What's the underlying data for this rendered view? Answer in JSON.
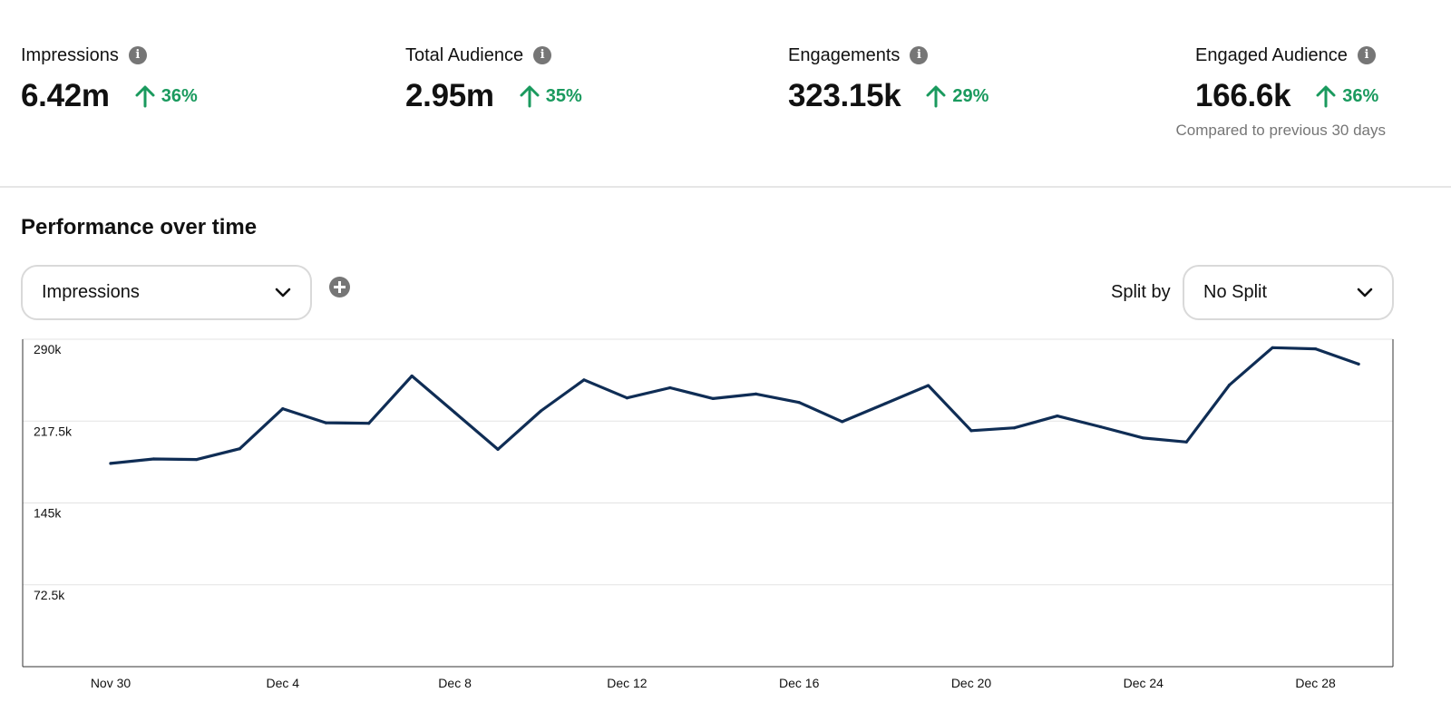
{
  "metrics": [
    {
      "label": "Impressions",
      "value": "6.42m",
      "change": "36%"
    },
    {
      "label": "Total Audience",
      "value": "2.95m",
      "change": "35%"
    },
    {
      "label": "Engagements",
      "value": "323.15k",
      "change": "29%"
    },
    {
      "label": "Engaged Audience",
      "value": "166.6k",
      "change": "36%"
    }
  ],
  "info_icon": "info-icon",
  "change_icon": "arrow-up-icon",
  "compare_note": "Compared to previous 30 days",
  "section_title": "Performance over time",
  "metric_select": {
    "value": "Impressions"
  },
  "add_icon": "plus-circle-icon",
  "split": {
    "label": "Split by",
    "value": "No Split"
  },
  "colors": {
    "line": "#0f2d55",
    "positive": "#1a9a5e",
    "icon": "#767676"
  },
  "chart_data": {
    "type": "line",
    "title": "",
    "xlabel": "",
    "ylabel": "",
    "ylim": [
      0,
      290000
    ],
    "y_ticks": [
      {
        "value": 290000,
        "label": "290k"
      },
      {
        "value": 217500,
        "label": "217.5k"
      },
      {
        "value": 145000,
        "label": "145k"
      },
      {
        "value": 72500,
        "label": "72.5k"
      }
    ],
    "x_tick_labels": [
      "Nov 30",
      "Dec 4",
      "Dec 8",
      "Dec 12",
      "Dec 16",
      "Dec 20",
      "Dec 24",
      "Dec 28"
    ],
    "grid": true,
    "x": [
      "Nov 30",
      "Dec 1",
      "Dec 2",
      "Dec 3",
      "Dec 4",
      "Dec 5",
      "Dec 6",
      "Dec 7",
      "Dec 8",
      "Dec 9",
      "Dec 10",
      "Dec 11",
      "Dec 12",
      "Dec 13",
      "Dec 14",
      "Dec 15",
      "Dec 16",
      "Dec 17",
      "Dec 18",
      "Dec 19",
      "Dec 20",
      "Dec 21",
      "Dec 22",
      "Dec 23",
      "Dec 24",
      "Dec 25",
      "Dec 26",
      "Dec 27",
      "Dec 28",
      "Dec 29"
    ],
    "series": [
      {
        "values": [
          180000,
          184000,
          183500,
          193000,
          228500,
          216000,
          215500,
          257500,
          225000,
          192500,
          226500,
          254000,
          238000,
          247000,
          237500,
          241500,
          234000,
          217000,
          233000,
          249000,
          209000,
          211500,
          222000,
          212500,
          202500,
          199000,
          249500,
          282500,
          281500,
          268000
        ]
      }
    ]
  }
}
